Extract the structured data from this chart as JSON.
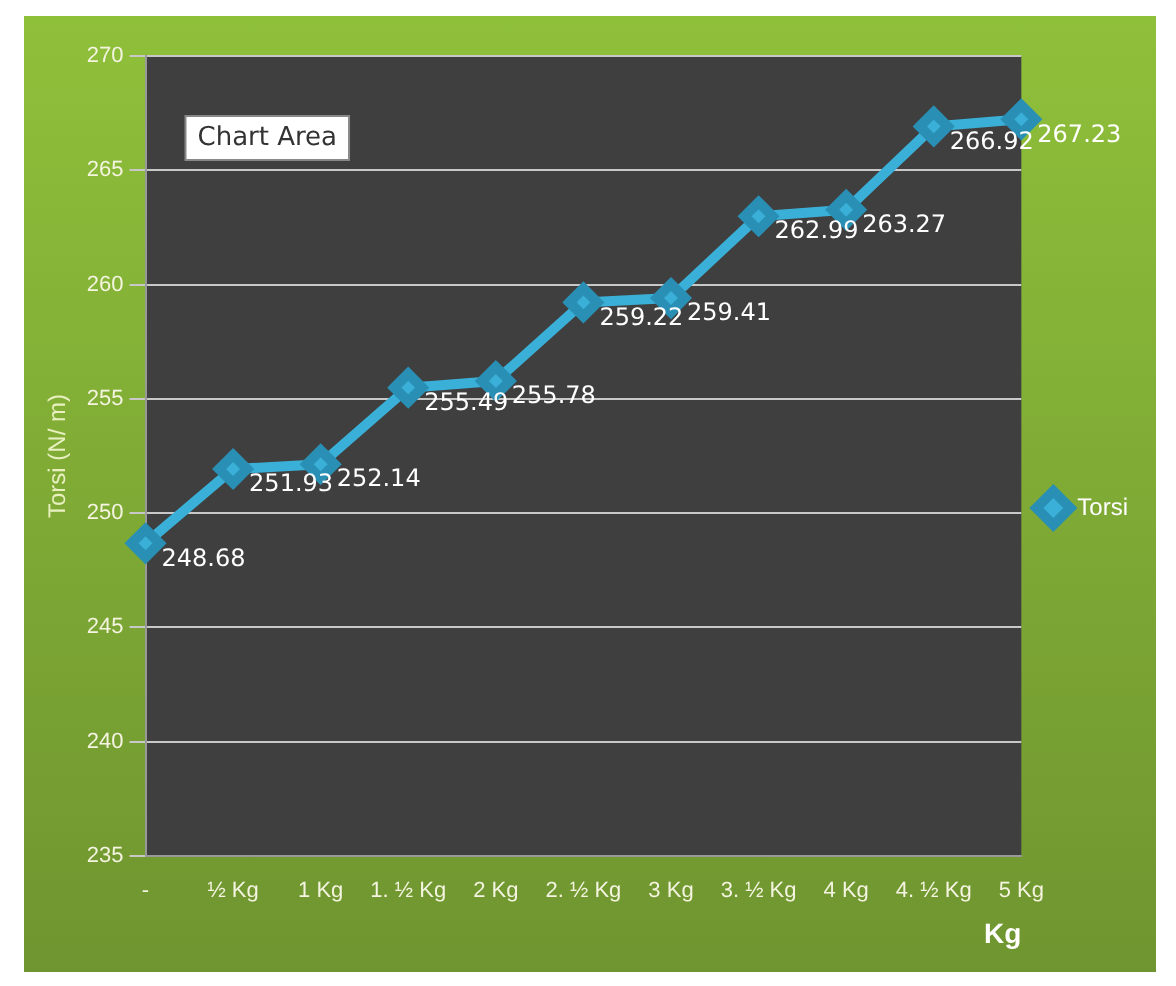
{
  "chart_data": {
    "type": "line",
    "xlabel": "Kg",
    "ylabel": "Torsi (N/ m)",
    "categories": [
      "-",
      "½ Kg",
      "1 Kg",
      "1. ½ Kg",
      "2 Kg",
      "2. ½ Kg",
      "3 Kg",
      "3. ½ Kg",
      "4 Kg",
      "4. ½ Kg",
      "5 Kg"
    ],
    "series": [
      {
        "name": "Torsi",
        "color": "#3ab0d8",
        "values": [
          248.68,
          251.93,
          252.14,
          255.49,
          255.78,
          259.22,
          259.41,
          262.99,
          263.27,
          266.92,
          267.23
        ]
      }
    ],
    "ylim": [
      235,
      270
    ],
    "yticks": [
      235,
      240,
      245,
      250,
      255,
      260,
      265,
      270
    ],
    "grid": "y",
    "legend": "right",
    "marker": "diamond",
    "line_style": "solid",
    "data_labels": true,
    "annotations": [
      "Chart Area"
    ]
  }
}
